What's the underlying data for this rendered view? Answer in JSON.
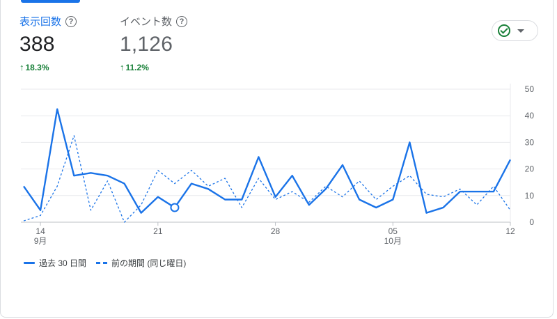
{
  "metrics": [
    {
      "label": "表示回数",
      "value": "388",
      "delta": "18.3%"
    },
    {
      "label": "イベント数",
      "value": "1,126",
      "delta": "11.2%"
    }
  ],
  "status": {
    "icon": "check-circle-icon",
    "color": "#188038"
  },
  "colors": {
    "accent": "#1a73e8",
    "positive": "#188038",
    "grid": "#e8eaed"
  },
  "chart_data": {
    "type": "line",
    "ylim": [
      0,
      50
    ],
    "y_ticks": [
      0,
      10,
      20,
      30,
      40,
      50
    ],
    "x_index_range": [
      0,
      29
    ],
    "x_ticks": [
      {
        "index": 1,
        "label": "14",
        "sub": "9月"
      },
      {
        "index": 8,
        "label": "21",
        "sub": ""
      },
      {
        "index": 15,
        "label": "28",
        "sub": ""
      },
      {
        "index": 22,
        "label": "05",
        "sub": "10月"
      },
      {
        "index": 29,
        "label": "12",
        "sub": ""
      }
    ],
    "series": [
      {
        "name": "過去 30 日間",
        "style": "solid",
        "values": [
          13.5,
          4.5,
          42.5,
          17.5,
          18.5,
          17.5,
          14.5,
          3.5,
          9.5,
          5.5,
          14.5,
          12.5,
          8.5,
          8.5,
          24.5,
          9.5,
          17.5,
          6.5,
          12.5,
          21.5,
          8.5,
          5.5,
          8.5,
          30,
          3.5,
          5.5,
          11.5,
          11.5,
          11.5,
          23.5
        ],
        "highlight_index": 9
      },
      {
        "name": "前の期間 (同じ曜日)",
        "style": "dashed",
        "values": [
          0.5,
          2.5,
          13.5,
          32.5,
          4.5,
          15.5,
          0,
          6.5,
          19.5,
          14.5,
          19.5,
          13.5,
          16.5,
          5.5,
          16.5,
          8.5,
          11.5,
          7.5,
          13.5,
          9.5,
          15.5,
          8.5,
          13.5,
          17.5,
          10.5,
          9.5,
          12.5,
          6.5,
          13.5,
          4.5
        ]
      }
    ]
  }
}
